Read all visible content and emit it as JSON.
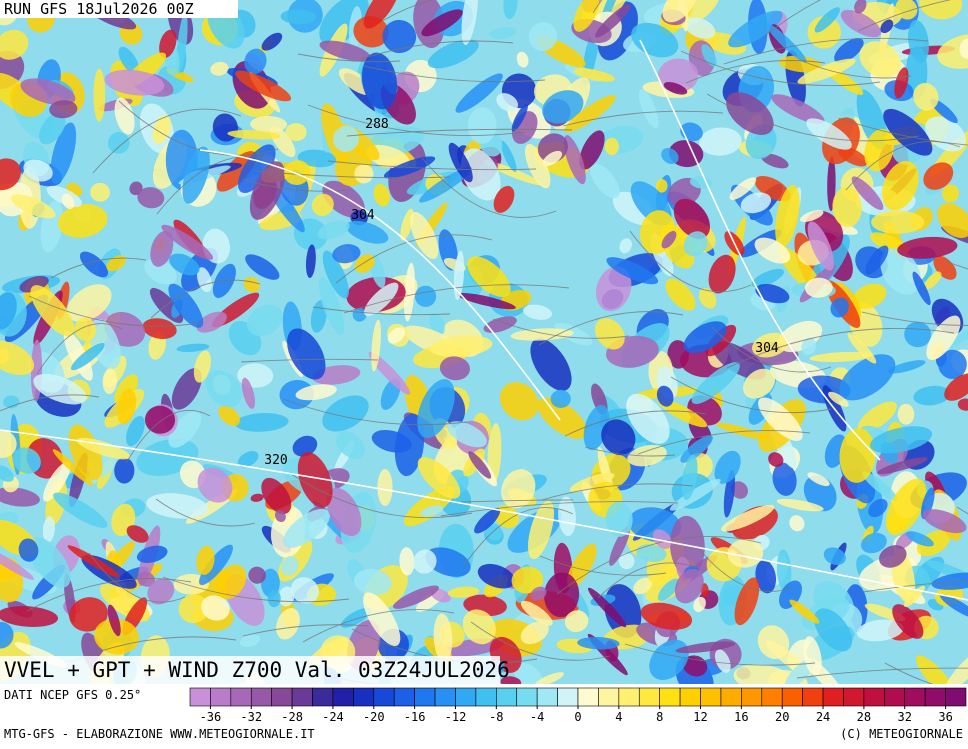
{
  "header": {
    "run": "RUN GFS 18Jul2026 00Z"
  },
  "map": {
    "contour_labels": [
      "288",
      "304",
      "304",
      "320"
    ],
    "title": "VVEL + GPT + WIND Z700 Val. 03Z24JUL2026"
  },
  "footer": {
    "source": "DATI NCEP GFS 0.25°",
    "credit_left": "MTG-GFS - ELABORAZIONE WWW.METEOGIORNALE.IT",
    "credit_right": "(C) METEOGIORNALE"
  },
  "colorbar": {
    "range": [
      -38,
      38
    ],
    "ticks": [
      -36,
      -32,
      -28,
      -24,
      -20,
      -16,
      -12,
      -8,
      -4,
      0,
      4,
      8,
      12,
      16,
      20,
      24,
      28,
      32,
      36
    ],
    "colors": [
      "#c890d8",
      "#b87cc8",
      "#a868b8",
      "#9858a8",
      "#884898",
      "#6a3a98",
      "#3a2a9a",
      "#2020a8",
      "#1830c0",
      "#1848d8",
      "#1c60e8",
      "#2078f0",
      "#2890f4",
      "#30a8f4",
      "#40c0f0",
      "#58d0f0",
      "#78dcf0",
      "#a0e8f4",
      "#d0f4f8",
      "#fffad0",
      "#fff4a0",
      "#fff070",
      "#ffe840",
      "#ffe010",
      "#ffd000",
      "#ffc000",
      "#ffac00",
      "#ff9800",
      "#ff8000",
      "#f86000",
      "#f04010",
      "#e02020",
      "#d01830",
      "#c01040",
      "#b00c50",
      "#a00c60",
      "#900c68",
      "#800c70"
    ]
  }
}
